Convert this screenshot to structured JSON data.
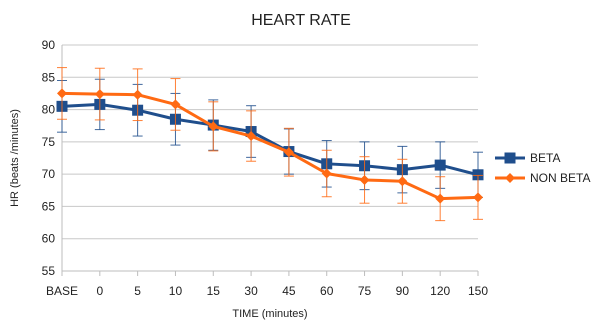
{
  "chart_data": {
    "type": "line",
    "title": "HEART RATE",
    "xlabel": "TIME (minutes)",
    "ylabel": "HR (beats /minutes)",
    "categories": [
      "BASE",
      "0",
      "5",
      "10",
      "15",
      "30",
      "45",
      "60",
      "75",
      "90",
      "120",
      "150"
    ],
    "ylim": [
      55,
      90
    ],
    "yticks": [
      55,
      60,
      65,
      70,
      75,
      80,
      85,
      90
    ],
    "grid": true,
    "legend_position": "right",
    "series": [
      {
        "name": "BETA",
        "color": "#1f4e8c",
        "marker": "square",
        "values": [
          80.5,
          80.8,
          79.9,
          78.5,
          77.6,
          76.6,
          73.5,
          71.6,
          71.3,
          70.7,
          71.4,
          69.9
        ],
        "errors": [
          4.0,
          3.9,
          4.0,
          4.0,
          3.9,
          4.0,
          3.5,
          3.6,
          3.7,
          3.6,
          3.6,
          3.5
        ]
      },
      {
        "name": "NON BETA",
        "color": "#ff6a13",
        "marker": "diamond",
        "values": [
          82.5,
          82.4,
          82.3,
          80.8,
          77.4,
          75.9,
          73.4,
          70.1,
          69.1,
          68.9,
          66.2,
          66.4
        ],
        "errors": [
          4.0,
          4.0,
          4.0,
          4.0,
          3.8,
          3.9,
          3.7,
          3.6,
          3.6,
          3.4,
          3.4,
          3.4
        ]
      }
    ]
  }
}
